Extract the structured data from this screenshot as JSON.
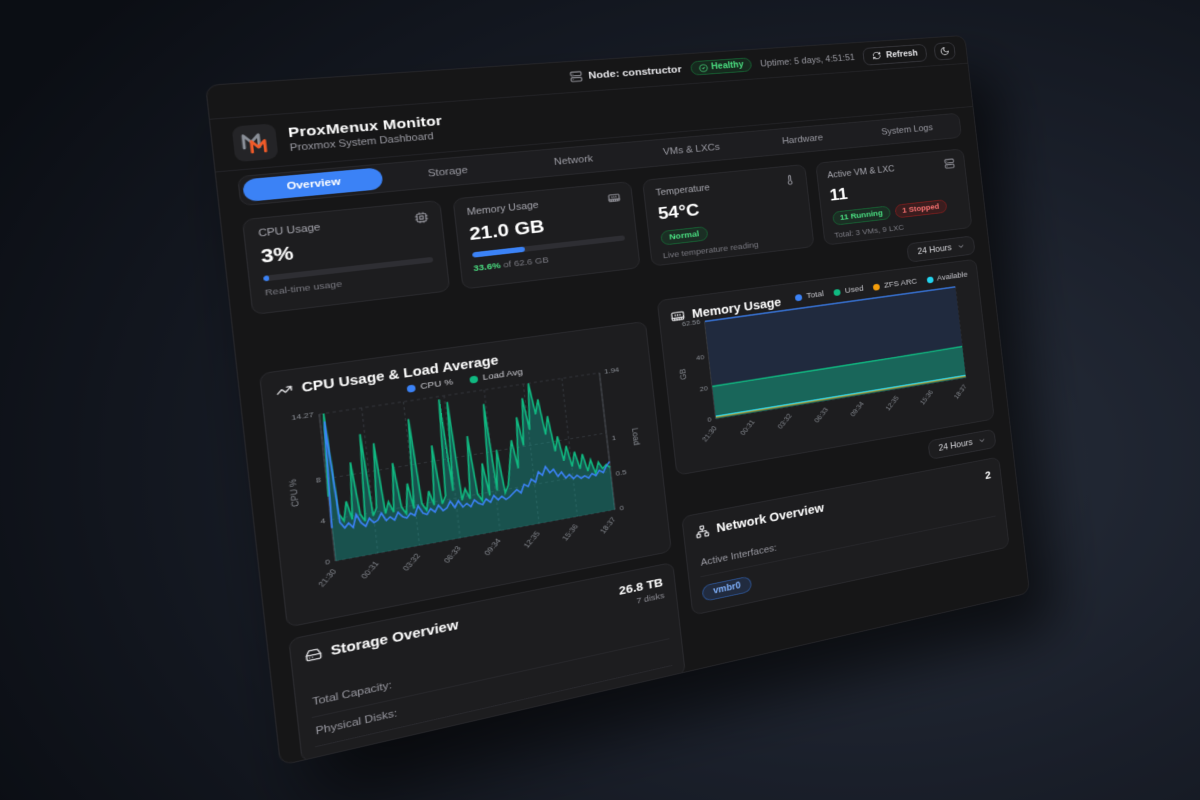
{
  "app": {
    "title": "ProxMenux Monitor",
    "subtitle": "Proxmox System Dashboard"
  },
  "topbar": {
    "node_label": "Node: constructor",
    "health_badge": "Healthy",
    "uptime": "Uptime: 5 days, 4:51:51",
    "refresh_label": "Refresh"
  },
  "tabs": {
    "items": [
      {
        "label": "Overview"
      },
      {
        "label": "Storage"
      },
      {
        "label": "Network"
      },
      {
        "label": "VMs & LXCs"
      },
      {
        "label": "Hardware"
      },
      {
        "label": "System Logs"
      }
    ]
  },
  "time_range": {
    "selected": "24 Hours"
  },
  "stats": {
    "cpu": {
      "title": "CPU Usage",
      "value": "3%",
      "percent": 3,
      "caption": "Real-time usage"
    },
    "memory": {
      "title": "Memory Usage",
      "value": "21.0 GB",
      "percent": 33.6,
      "caption_highlight": "33.6%",
      "caption_rest": " of 62.6 GB"
    },
    "temperature": {
      "title": "Temperature",
      "value": "54°C",
      "badge": "Normal",
      "caption": "Live temperature reading"
    },
    "vms": {
      "title": "Active VM & LXC",
      "value": "11",
      "running_badge": "11 Running",
      "stopped_badge": "1 Stopped",
      "caption": "Total: 3 VMs, 9 LXC"
    }
  },
  "storage": {
    "title": "Storage Overview",
    "total": "26.8 TB",
    "disks": "7 disks",
    "rows": [
      "Total Capacity:",
      "Physical Disks:"
    ]
  },
  "network": {
    "title": "Network Overview",
    "count": "2",
    "label": "Active Interfaces:",
    "interfaces": [
      "vmbr0"
    ]
  },
  "colors": {
    "accent_blue": "#3b82f6",
    "green": "#10b981",
    "amber": "#f59e0b",
    "cyan": "#22d3ee",
    "status_green": "#4ade80",
    "status_red": "#f87171"
  },
  "chart_data": [
    {
      "id": "cpu_load",
      "type": "area",
      "title": "CPU Usage & Load Average",
      "x_ticks": [
        "21:30",
        "00:31",
        "03:32",
        "06:33",
        "09:34",
        "12:35",
        "15:36",
        "18:37"
      ],
      "y_left": {
        "label": "CPU %",
        "max": 14.27,
        "ticks": [
          0,
          4,
          8,
          14.27
        ]
      },
      "y_right": {
        "label": "Load",
        "max": 1.94,
        "ticks": [
          0,
          0.5,
          1,
          1.94
        ]
      },
      "grid": "dashed",
      "legend_position": "top-center",
      "series": [
        {
          "name": "Load Avg",
          "axis": "right",
          "color": "#10b981",
          "fill": "rgba(20,184,166,0.35)",
          "values": [
            0.85,
            1.94,
            0.6,
            0.5,
            0.75,
            0.5,
            1.25,
            0.55,
            0.45,
            1.6,
            0.5,
            0.6,
            1.45,
            0.5,
            0.65,
            0.5,
            1.15,
            0.55,
            0.45,
            0.85,
            0.5,
            1.7,
            0.55,
            0.45,
            0.7,
            0.5,
            1.3,
            0.5,
            0.6,
            1.9,
            0.65,
            1.85,
            0.5,
            0.65,
            0.5,
            1.35,
            0.55,
            0.45,
            0.95,
            0.5,
            1.75,
            0.55,
            1.1,
            0.5,
            0.6,
            0.9,
            1.2,
            0.8,
            1.5,
            1.1,
            1.75,
            1.3,
            1.94,
            1.5,
            1.7,
            1.2,
            1.45,
            0.95,
            1.15,
            0.8,
            1.0,
            0.7,
            0.9,
            0.65,
            0.85,
            0.6,
            0.75,
            0.55,
            0.7,
            0.6,
            0.65,
            0.6
          ]
        },
        {
          "name": "CPU %",
          "axis": "left",
          "color": "#3b82f6",
          "values": [
            3.2,
            13.5,
            3.6,
            3.0,
            3.4,
            2.9,
            4.1,
            3.2,
            2.8,
            3.5,
            3.0,
            3.2,
            3.8,
            3.0,
            3.3,
            2.9,
            3.6,
            3.1,
            2.9,
            3.3,
            3.0,
            3.9,
            3.1,
            2.9,
            3.4,
            3.0,
            3.6,
            3.0,
            3.2,
            3.8,
            3.1,
            3.7,
            3.0,
            3.3,
            2.9,
            3.5,
            3.1,
            2.9,
            3.4,
            3.0,
            3.6,
            3.1,
            3.4,
            3.0,
            3.2,
            3.5,
            3.8,
            3.4,
            4.2,
            3.9,
            4.6,
            4.2,
            5.2,
            4.8,
            5.6,
            4.9,
            5.2,
            4.4,
            4.8,
            4.1,
            4.4,
            3.9,
            4.2,
            3.8,
            4.0,
            3.7,
            4.1,
            3.8,
            4.3,
            4.0,
            4.6,
            5.0
          ]
        }
      ]
    },
    {
      "id": "memory",
      "type": "area",
      "title": "Memory Usage",
      "x_ticks": [
        "21:30",
        "00:31",
        "03:32",
        "06:33",
        "09:34",
        "12:35",
        "15:36",
        "18:37"
      ],
      "y_left": {
        "label": "GB",
        "max": 62.56,
        "ticks": [
          0,
          20,
          40,
          62.56
        ]
      },
      "grid": "dashed",
      "legend_position": "top-right",
      "series": [
        {
          "name": "Total",
          "axis": "left",
          "color": "#3b82f6",
          "fill": "#202a3e",
          "values": [
            62.56,
            62.56,
            62.56,
            62.56,
            62.56,
            62.56,
            62.56,
            62.56
          ]
        },
        {
          "name": "Used",
          "axis": "left",
          "color": "#10b981",
          "fill": "rgba(16,185,129,0.42)",
          "values": [
            20.8,
            20.9,
            21.0,
            21.0,
            21.1,
            21.2,
            21.3,
            21.5
          ]
        },
        {
          "name": "ZFS ARC",
          "axis": "left",
          "color": "#f59e0b",
          "values": [
            1.3,
            1.3,
            1.3,
            1.3,
            1.3,
            1.3,
            1.3,
            1.3
          ]
        },
        {
          "name": "Available",
          "axis": "left",
          "color": "#22d3ee",
          "values": [
            1.7,
            1.7,
            1.7,
            1.7,
            1.7,
            1.7,
            1.7,
            1.7
          ]
        }
      ]
    }
  ]
}
